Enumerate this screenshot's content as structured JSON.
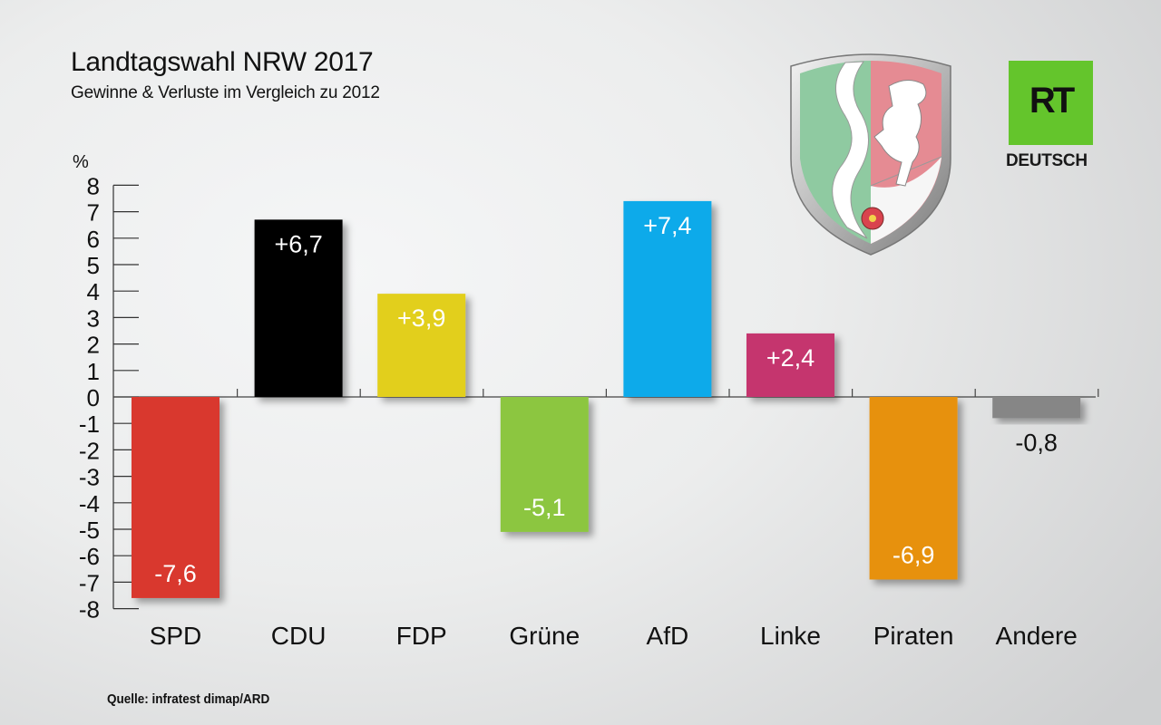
{
  "header": {
    "title": "Landtagswahl NRW 2017",
    "subtitle": "Gewinne & Verluste im Vergleich zu 2012",
    "unit": "%"
  },
  "footer": {
    "source": "Quelle: infratest dimap/ARD"
  },
  "branding": {
    "logo_text": "RT",
    "logo_sub": "DEUTSCH",
    "logo_color": "#64c52c",
    "crest_icon": "nrw-coat-of-arms-icon"
  },
  "chart_data": {
    "type": "bar",
    "categories": [
      "SPD",
      "CDU",
      "FDP",
      "Grüne",
      "AfD",
      "Linke",
      "Piraten",
      "Andere"
    ],
    "values": [
      -7.6,
      6.7,
      3.9,
      -5.1,
      7.4,
      2.4,
      -6.9,
      -0.8
    ],
    "labels": [
      "-7,6",
      "+6,7",
      "+3,9",
      "-5,1",
      "+7,4",
      "+2,4",
      "-6,9",
      "-0,8"
    ],
    "colors": [
      "#d9382f",
      "#000000",
      "#e2cf1f",
      "#8cc63f",
      "#0eaaea",
      "#c5356e",
      "#e7910f",
      "#868686"
    ],
    "title": "Landtagswahl NRW 2017",
    "ylabel": "%",
    "ylim": [
      -8,
      8
    ],
    "yticks": [
      "8",
      "7",
      "6",
      "5",
      "4",
      "3",
      "2",
      "1",
      "0",
      "-1",
      "-2",
      "-3",
      "-4",
      "-5",
      "-6",
      "-7",
      "-8"
    ],
    "grid": false
  }
}
